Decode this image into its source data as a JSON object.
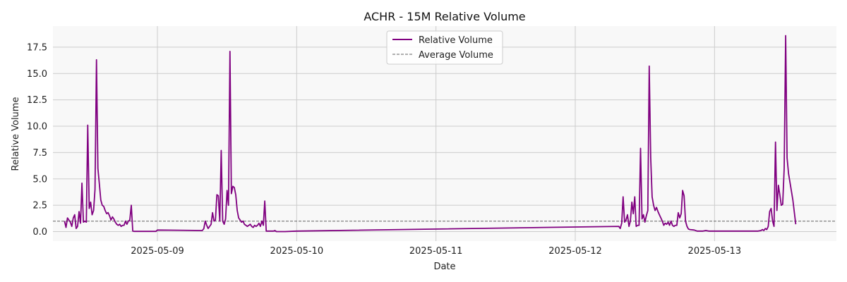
{
  "chart_data": {
    "type": "line",
    "title": "ACHR - 15M Relative Volume",
    "xlabel": "Date",
    "ylabel": "Relative Volume",
    "ylim": [
      -0.9,
      19.5
    ],
    "xlim": [
      "2025-05-08 06:00",
      "2025-05-13 21:00"
    ],
    "grid": true,
    "legend_position": "top-center",
    "x_ticks": [
      "2025-05-09",
      "2025-05-10",
      "2025-05-11",
      "2025-05-12",
      "2025-05-13"
    ],
    "y_ticks": [
      0.0,
      2.5,
      5.0,
      7.5,
      10.0,
      12.5,
      15.0,
      17.5
    ],
    "y_tick_labels": [
      "0.0",
      "2.5",
      "5.0",
      "7.5",
      "10.0",
      "12.5",
      "15.0",
      "17.5"
    ],
    "series": [
      {
        "name": "Relative Volume",
        "color": "#800080",
        "style": "solid",
        "points": [
          [
            "2025-05-08 08:00",
            1.0
          ],
          [
            "2025-05-08 08:15",
            0.4
          ],
          [
            "2025-05-08 08:30",
            1.3
          ],
          [
            "2025-05-08 08:45",
            1.1
          ],
          [
            "2025-05-08 09:00",
            0.9
          ],
          [
            "2025-05-08 09:15",
            0.5
          ],
          [
            "2025-05-08 09:30",
            1.3
          ],
          [
            "2025-05-08 09:45",
            1.6
          ],
          [
            "2025-05-08 10:00",
            0.3
          ],
          [
            "2025-05-08 10:15",
            0.5
          ],
          [
            "2025-05-08 10:30",
            1.9
          ],
          [
            "2025-05-08 10:45",
            0.8
          ],
          [
            "2025-05-08 11:00",
            4.6
          ],
          [
            "2025-05-08 11:15",
            0.9
          ],
          [
            "2025-05-08 11:30",
            1.0
          ],
          [
            "2025-05-08 11:45",
            0.9
          ],
          [
            "2025-05-08 12:00",
            10.1
          ],
          [
            "2025-05-08 12:15",
            2.2
          ],
          [
            "2025-05-08 12:30",
            2.8
          ],
          [
            "2025-05-08 12:45",
            1.6
          ],
          [
            "2025-05-08 13:00",
            2.0
          ],
          [
            "2025-05-08 13:15",
            4.0
          ],
          [
            "2025-05-08 13:30",
            16.3
          ],
          [
            "2025-05-08 13:45",
            6.0
          ],
          [
            "2025-05-08 14:00",
            4.5
          ],
          [
            "2025-05-08 14:15",
            3.0
          ],
          [
            "2025-05-08 14:30",
            2.5
          ],
          [
            "2025-05-08 14:45",
            2.4
          ],
          [
            "2025-05-08 15:00",
            2.0
          ],
          [
            "2025-05-08 15:15",
            1.7
          ],
          [
            "2025-05-08 15:30",
            1.8
          ],
          [
            "2025-05-08 15:45",
            1.5
          ],
          [
            "2025-05-08 16:00",
            1.1
          ],
          [
            "2025-05-08 16:15",
            1.4
          ],
          [
            "2025-05-08 16:30",
            1.2
          ],
          [
            "2025-05-08 16:45",
            0.9
          ],
          [
            "2025-05-08 17:00",
            0.7
          ],
          [
            "2025-05-08 17:15",
            0.6
          ],
          [
            "2025-05-08 17:30",
            0.7
          ],
          [
            "2025-05-08 17:45",
            0.5
          ],
          [
            "2025-05-08 18:00",
            0.6
          ],
          [
            "2025-05-08 18:15",
            0.6
          ],
          [
            "2025-05-08 18:30",
            1.0
          ],
          [
            "2025-05-08 18:45",
            0.7
          ],
          [
            "2025-05-08 19:00",
            1.0
          ],
          [
            "2025-05-08 19:15",
            1.1
          ],
          [
            "2025-05-08 19:30",
            2.5
          ],
          [
            "2025-05-08 19:45",
            0.05
          ],
          [
            "2025-05-08 20:00",
            0.02
          ],
          [
            "2025-05-08 23:45",
            0.02
          ],
          [
            "2025-05-09 00:00",
            0.15
          ],
          [
            "2025-05-09 07:45",
            0.1
          ],
          [
            "2025-05-09 08:00",
            0.3
          ],
          [
            "2025-05-09 08:15",
            1.0
          ],
          [
            "2025-05-09 08:30",
            0.6
          ],
          [
            "2025-05-09 08:45",
            0.3
          ],
          [
            "2025-05-09 09:00",
            0.5
          ],
          [
            "2025-05-09 09:15",
            0.7
          ],
          [
            "2025-05-09 09:30",
            1.8
          ],
          [
            "2025-05-09 09:45",
            1.0
          ],
          [
            "2025-05-09 10:00",
            1.1
          ],
          [
            "2025-05-09 10:15",
            3.5
          ],
          [
            "2025-05-09 10:30",
            3.4
          ],
          [
            "2025-05-09 10:45",
            1.0
          ],
          [
            "2025-05-09 11:00",
            7.7
          ],
          [
            "2025-05-09 11:15",
            1.0
          ],
          [
            "2025-05-09 11:30",
            0.7
          ],
          [
            "2025-05-09 11:45",
            1.2
          ],
          [
            "2025-05-09 12:00",
            3.9
          ],
          [
            "2025-05-09 12:15",
            2.5
          ],
          [
            "2025-05-09 12:30",
            17.1
          ],
          [
            "2025-05-09 12:45",
            3.6
          ],
          [
            "2025-05-09 13:00",
            4.3
          ],
          [
            "2025-05-09 13:15",
            4.2
          ],
          [
            "2025-05-09 13:30",
            3.5
          ],
          [
            "2025-05-09 13:45",
            2.0
          ],
          [
            "2025-05-09 14:00",
            1.3
          ],
          [
            "2025-05-09 14:15",
            1.1
          ],
          [
            "2025-05-09 14:30",
            0.9
          ],
          [
            "2025-05-09 14:45",
            1.0
          ],
          [
            "2025-05-09 15:00",
            0.7
          ],
          [
            "2025-05-09 15:15",
            0.6
          ],
          [
            "2025-05-09 15:30",
            0.5
          ],
          [
            "2025-05-09 15:45",
            0.6
          ],
          [
            "2025-05-09 16:00",
            0.7
          ],
          [
            "2025-05-09 16:15",
            0.5
          ],
          [
            "2025-05-09 16:30",
            0.4
          ],
          [
            "2025-05-09 16:45",
            0.6
          ],
          [
            "2025-05-09 17:00",
            0.5
          ],
          [
            "2025-05-09 17:15",
            0.6
          ],
          [
            "2025-05-09 17:30",
            0.8
          ],
          [
            "2025-05-09 17:45",
            0.5
          ],
          [
            "2025-05-09 18:00",
            1.0
          ],
          [
            "2025-05-09 18:15",
            0.6
          ],
          [
            "2025-05-09 18:30",
            2.9
          ],
          [
            "2025-05-09 18:45",
            0.05
          ],
          [
            "2025-05-09 20:00",
            0.05
          ],
          [
            "2025-05-09 20:15",
            0.1
          ],
          [
            "2025-05-09 20:30",
            0.0
          ],
          [
            "2025-05-09 22:00",
            0.0
          ],
          [
            "2025-05-10 00:00",
            0.05
          ],
          [
            "2025-05-12 07:30",
            0.5
          ],
          [
            "2025-05-12 07:45",
            0.3
          ],
          [
            "2025-05-12 08:00",
            0.8
          ],
          [
            "2025-05-12 08:15",
            3.3
          ],
          [
            "2025-05-12 08:30",
            0.9
          ],
          [
            "2025-05-12 08:45",
            1.1
          ],
          [
            "2025-05-12 09:00",
            1.6
          ],
          [
            "2025-05-12 09:15",
            0.5
          ],
          [
            "2025-05-12 09:30",
            1.0
          ],
          [
            "2025-05-12 09:45",
            2.8
          ],
          [
            "2025-05-12 10:00",
            1.7
          ],
          [
            "2025-05-12 10:15",
            3.3
          ],
          [
            "2025-05-12 10:30",
            0.5
          ],
          [
            "2025-05-12 10:45",
            0.6
          ],
          [
            "2025-05-12 11:00",
            0.6
          ],
          [
            "2025-05-12 11:15",
            7.9
          ],
          [
            "2025-05-12 11:30",
            1.2
          ],
          [
            "2025-05-12 11:45",
            1.6
          ],
          [
            "2025-05-12 12:00",
            0.9
          ],
          [
            "2025-05-12 12:15",
            1.5
          ],
          [
            "2025-05-12 12:30",
            2.0
          ],
          [
            "2025-05-12 12:45",
            15.7
          ],
          [
            "2025-05-12 13:00",
            7.0
          ],
          [
            "2025-05-12 13:15",
            3.3
          ],
          [
            "2025-05-12 13:30",
            2.5
          ],
          [
            "2025-05-12 13:45",
            2.0
          ],
          [
            "2025-05-12 14:00",
            2.3
          ],
          [
            "2025-05-12 14:15",
            1.9
          ],
          [
            "2025-05-12 14:30",
            1.6
          ],
          [
            "2025-05-12 14:45",
            1.3
          ],
          [
            "2025-05-12 15:00",
            1.0
          ],
          [
            "2025-05-12 15:15",
            0.6
          ],
          [
            "2025-05-12 15:30",
            0.8
          ],
          [
            "2025-05-12 15:45",
            0.7
          ],
          [
            "2025-05-12 16:00",
            0.9
          ],
          [
            "2025-05-12 16:15",
            0.6
          ],
          [
            "2025-05-12 16:30",
            1.0
          ],
          [
            "2025-05-12 16:45",
            0.6
          ],
          [
            "2025-05-12 17:00",
            0.5
          ],
          [
            "2025-05-12 17:15",
            0.6
          ],
          [
            "2025-05-12 17:30",
            0.6
          ],
          [
            "2025-05-12 17:45",
            1.8
          ],
          [
            "2025-05-12 18:00",
            1.3
          ],
          [
            "2025-05-12 18:15",
            1.7
          ],
          [
            "2025-05-12 18:30",
            3.9
          ],
          [
            "2025-05-12 18:45",
            3.4
          ],
          [
            "2025-05-12 19:00",
            1.0
          ],
          [
            "2025-05-12 19:15",
            0.5
          ],
          [
            "2025-05-12 19:30",
            0.25
          ],
          [
            "2025-05-12 19:45",
            0.2
          ],
          [
            "2025-05-12 20:30",
            0.15
          ],
          [
            "2025-05-12 21:00",
            0.05
          ],
          [
            "2025-05-12 22:00",
            0.05
          ],
          [
            "2025-05-12 22:30",
            0.1
          ],
          [
            "2025-05-12 23:00",
            0.05
          ],
          [
            "2025-05-13 00:00",
            0.05
          ],
          [
            "2025-05-13 07:30",
            0.05
          ],
          [
            "2025-05-13 08:00",
            0.1
          ],
          [
            "2025-05-13 08:15",
            0.2
          ],
          [
            "2025-05-13 08:30",
            0.1
          ],
          [
            "2025-05-13 08:45",
            0.3
          ],
          [
            "2025-05-13 09:00",
            0.2
          ],
          [
            "2025-05-13 09:15",
            0.5
          ],
          [
            "2025-05-13 09:30",
            1.9
          ],
          [
            "2025-05-13 09:45",
            2.2
          ],
          [
            "2025-05-13 10:00",
            1.0
          ],
          [
            "2025-05-13 10:15",
            0.5
          ],
          [
            "2025-05-13 10:30",
            8.5
          ],
          [
            "2025-05-13 10:45",
            2.0
          ],
          [
            "2025-05-13 11:00",
            4.4
          ],
          [
            "2025-05-13 11:15",
            3.5
          ],
          [
            "2025-05-13 11:30",
            2.5
          ],
          [
            "2025-05-13 11:45",
            2.6
          ],
          [
            "2025-05-13 12:00",
            6.0
          ],
          [
            "2025-05-13 12:15",
            18.6
          ],
          [
            "2025-05-13 12:30",
            7.0
          ],
          [
            "2025-05-13 12:45",
            5.5
          ],
          [
            "2025-05-13 13:30",
            3.0
          ],
          [
            "2025-05-13 14:00",
            0.7
          ]
        ]
      },
      {
        "name": "Average Volume",
        "color": "#808080",
        "style": "dashed",
        "value": 1.0
      }
    ]
  }
}
